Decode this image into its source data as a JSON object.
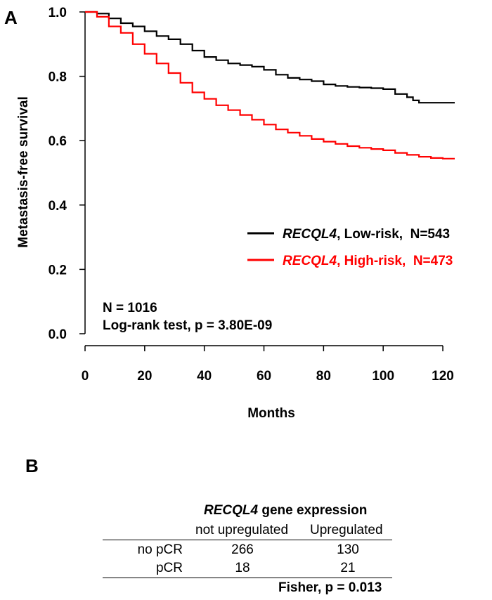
{
  "panel_a": {
    "label": "A",
    "chart_data": {
      "type": "line",
      "title": "",
      "xlabel": "Months",
      "ylabel": "Metastasis-free survival",
      "xlim": [
        0,
        124
      ],
      "ylim": [
        0.0,
        1.0
      ],
      "xticks": [
        "0",
        "20",
        "40",
        "60",
        "80",
        "100",
        "120"
      ],
      "yticks": [
        "0.0",
        "0.2",
        "0.4",
        "0.6",
        "0.8",
        "1.0"
      ],
      "series": [
        {
          "name": "RECQL4, Low-risk, N=543",
          "gene": "RECQL4",
          "label_rest": ", Low-risk,  N=543",
          "color": "#000000",
          "x": [
            0,
            4,
            8,
            12,
            16,
            20,
            24,
            28,
            32,
            36,
            40,
            44,
            48,
            52,
            56,
            60,
            64,
            68,
            72,
            76,
            80,
            84,
            88,
            92,
            96,
            100,
            104,
            108,
            110,
            112,
            116,
            120,
            124
          ],
          "y": [
            1.0,
            0.995,
            0.98,
            0.965,
            0.955,
            0.94,
            0.925,
            0.915,
            0.9,
            0.88,
            0.86,
            0.85,
            0.84,
            0.835,
            0.83,
            0.82,
            0.805,
            0.795,
            0.79,
            0.785,
            0.775,
            0.77,
            0.767,
            0.765,
            0.763,
            0.76,
            0.745,
            0.735,
            0.725,
            0.718,
            0.718,
            0.718,
            0.718
          ]
        },
        {
          "name": "RECQL4, High-risk, N=473",
          "gene": "RECQL4",
          "label_rest": ", High-risk,  N=473",
          "color": "#ff0000",
          "x": [
            0,
            4,
            8,
            12,
            16,
            20,
            24,
            28,
            32,
            36,
            40,
            44,
            48,
            52,
            56,
            60,
            64,
            68,
            72,
            76,
            80,
            84,
            88,
            92,
            96,
            100,
            104,
            108,
            112,
            116,
            120,
            124
          ],
          "y": [
            1.0,
            0.985,
            0.955,
            0.935,
            0.9,
            0.87,
            0.84,
            0.81,
            0.78,
            0.75,
            0.73,
            0.71,
            0.695,
            0.68,
            0.665,
            0.65,
            0.635,
            0.625,
            0.615,
            0.605,
            0.597,
            0.59,
            0.583,
            0.578,
            0.574,
            0.57,
            0.562,
            0.556,
            0.55,
            0.546,
            0.544,
            0.544
          ]
        }
      ],
      "annotations": [
        "N = 1016",
        "Log-rank test, p = 3.80E-09"
      ],
      "legend_position": "center-right"
    }
  },
  "panel_b": {
    "label": "B",
    "header_gene": "RECQL4",
    "header_rest": " gene expression",
    "columns": [
      "not upregulated",
      "Upregulated"
    ],
    "rows": [
      {
        "label": "no pCR",
        "values": [
          "266",
          "130"
        ]
      },
      {
        "label": "pCR",
        "values": [
          "18",
          "21"
        ]
      }
    ],
    "footer": "Fisher, p = 0.013"
  }
}
